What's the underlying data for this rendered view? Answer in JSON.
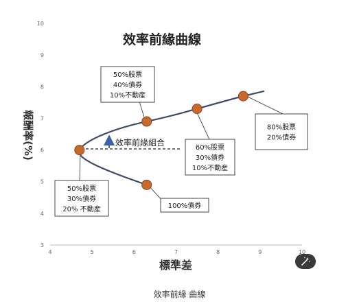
{
  "chart_data": {
    "type": "scatter",
    "title": "效率前緣曲線",
    "xlabel": "標準差",
    "ylabel": "報酬率(%)",
    "xlim": [
      4,
      10
    ],
    "ylim": [
      3,
      10
    ],
    "xticks": [
      "4",
      "5",
      "6",
      "7",
      "8",
      "9",
      "10"
    ],
    "yticks": [
      "3",
      "4",
      "5",
      "6",
      "7",
      "8",
      "9",
      "10"
    ],
    "grid": false,
    "points": [
      {
        "x": 4.7,
        "y": 6.0
      },
      {
        "x": 6.3,
        "y": 6.9
      },
      {
        "x": 7.5,
        "y": 7.3
      },
      {
        "x": 8.6,
        "y": 7.7
      },
      {
        "x": 6.3,
        "y": 4.9
      }
    ],
    "curve_color": "#3f4a6b",
    "point_color": "#c86a2e",
    "annotations": [
      {
        "lines": [
          "50%股票",
          "40%債券",
          "10%不動産"
        ]
      },
      {
        "lines": [
          "60%股票",
          "30%債券",
          "10%不動産"
        ]
      },
      {
        "lines": [
          "80%股票",
          "20%債券"
        ]
      },
      {
        "lines": [
          "50%股票",
          "30%債券",
          "20% 不動産"
        ]
      },
      {
        "lines": [
          "100%債券"
        ]
      }
    ],
    "efficient_label": "效率前緣組合"
  },
  "caption": "效率前緣 曲線",
  "toolbar": {
    "icon": "magic-wand-icon"
  }
}
